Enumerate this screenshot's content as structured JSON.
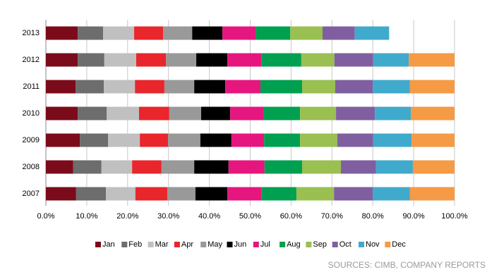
{
  "chart_data": {
    "type": "stacked-bar-horizontal",
    "categories": [
      "2013",
      "2012",
      "2011",
      "2010",
      "2009",
      "2008",
      "2007"
    ],
    "series": [
      {
        "name": "Jan",
        "color": "#7b0b1a",
        "values": [
          7.8,
          7.8,
          7.3,
          7.8,
          8.3,
          6.7,
          7.4
        ]
      },
      {
        "name": "Feb",
        "color": "#6d6d6d",
        "values": [
          6.2,
          6.5,
          6.9,
          7.1,
          6.9,
          6.9,
          7.3
        ]
      },
      {
        "name": "Mar",
        "color": "#c0c0c0",
        "values": [
          7.6,
          7.8,
          7.6,
          7.9,
          7.8,
          7.5,
          7.2
        ]
      },
      {
        "name": "Apr",
        "color": "#e8262c",
        "values": [
          7.1,
          7.3,
          7.2,
          7.4,
          6.9,
          7.2,
          7.8
        ]
      },
      {
        "name": "May",
        "color": "#999999",
        "values": [
          7.1,
          7.4,
          7.3,
          7.8,
          7.9,
          8.0,
          6.9
        ]
      },
      {
        "name": "Jun",
        "color": "#000000",
        "values": [
          7.4,
          7.6,
          7.6,
          7.1,
          7.6,
          8.4,
          7.8
        ]
      },
      {
        "name": "Jul",
        "color": "#e6167f",
        "values": [
          8.1,
          8.4,
          8.6,
          8.1,
          8.0,
          8.8,
          8.3
        ]
      },
      {
        "name": "Aug",
        "color": "#00a050",
        "values": [
          8.5,
          9.7,
          10.2,
          9.0,
          8.8,
          9.2,
          8.6
        ]
      },
      {
        "name": "Sep",
        "color": "#99c050",
        "values": [
          7.9,
          8.1,
          8.1,
          8.8,
          9.1,
          9.5,
          9.2
        ]
      },
      {
        "name": "Oct",
        "color": "#7f5fa0",
        "values": [
          7.9,
          9.5,
          9.2,
          9.5,
          8.8,
          8.6,
          9.5
        ]
      },
      {
        "name": "Nov",
        "color": "#40aacc",
        "values": [
          8.4,
          8.7,
          9.1,
          8.8,
          9.4,
          9.0,
          9.1
        ]
      },
      {
        "name": "Dec",
        "color": "#f59a45",
        "values": [
          null,
          11.2,
          10.9,
          10.7,
          10.5,
          10.2,
          10.9
        ]
      }
    ],
    "xlim": [
      0,
      100
    ],
    "xticks": [
      {
        "value": 0,
        "label": "0.0%"
      },
      {
        "value": 10,
        "label": "10.0%"
      },
      {
        "value": 20,
        "label": "20.0%"
      },
      {
        "value": 30,
        "label": "30.0%"
      },
      {
        "value": 40,
        "label": "40.0%"
      },
      {
        "value": 50,
        "label": "50.0%"
      },
      {
        "value": 60,
        "label": "60.0%"
      },
      {
        "value": 70,
        "label": "70.0%"
      },
      {
        "value": 80,
        "label": "80.0%"
      },
      {
        "value": 90,
        "label": "90.0%"
      },
      {
        "value": 100,
        "label": "100.0%"
      }
    ],
    "grid": true,
    "legend": "bottom",
    "source": "SOURCES: CIMB, COMPANY REPORTS"
  }
}
